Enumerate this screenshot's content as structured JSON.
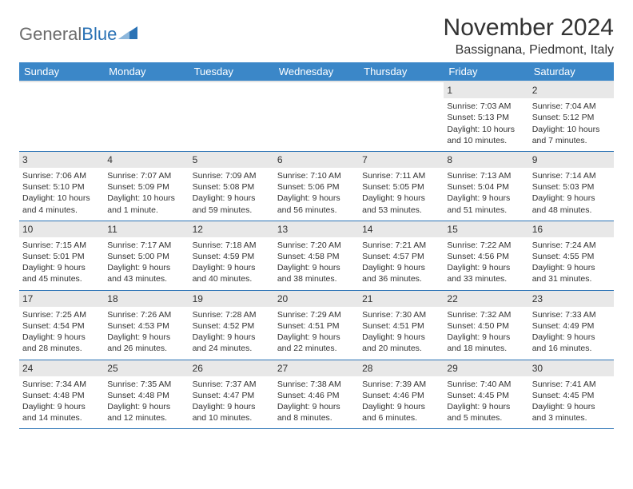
{
  "logo": {
    "text1": "General",
    "text2": "Blue"
  },
  "title": "November 2024",
  "location": "Bassignana, Piedmont, Italy",
  "colors": {
    "header_bg": "#3b87c8",
    "header_text": "#ffffff",
    "daynum_bg": "#e8e8e8",
    "row_border": "#2a72b5",
    "logo_gray": "#6b6b6b",
    "logo_blue": "#2a72b5",
    "page_bg": "#ffffff",
    "body_text": "#333333"
  },
  "weekdays": [
    "Sunday",
    "Monday",
    "Tuesday",
    "Wednesday",
    "Thursday",
    "Friday",
    "Saturday"
  ],
  "weeks": [
    [
      null,
      null,
      null,
      null,
      null,
      {
        "day": "1",
        "sunrise": "Sunrise: 7:03 AM",
        "sunset": "Sunset: 5:13 PM",
        "daylight1": "Daylight: 10 hours",
        "daylight2": "and 10 minutes."
      },
      {
        "day": "2",
        "sunrise": "Sunrise: 7:04 AM",
        "sunset": "Sunset: 5:12 PM",
        "daylight1": "Daylight: 10 hours",
        "daylight2": "and 7 minutes."
      }
    ],
    [
      {
        "day": "3",
        "sunrise": "Sunrise: 7:06 AM",
        "sunset": "Sunset: 5:10 PM",
        "daylight1": "Daylight: 10 hours",
        "daylight2": "and 4 minutes."
      },
      {
        "day": "4",
        "sunrise": "Sunrise: 7:07 AM",
        "sunset": "Sunset: 5:09 PM",
        "daylight1": "Daylight: 10 hours",
        "daylight2": "and 1 minute."
      },
      {
        "day": "5",
        "sunrise": "Sunrise: 7:09 AM",
        "sunset": "Sunset: 5:08 PM",
        "daylight1": "Daylight: 9 hours",
        "daylight2": "and 59 minutes."
      },
      {
        "day": "6",
        "sunrise": "Sunrise: 7:10 AM",
        "sunset": "Sunset: 5:06 PM",
        "daylight1": "Daylight: 9 hours",
        "daylight2": "and 56 minutes."
      },
      {
        "day": "7",
        "sunrise": "Sunrise: 7:11 AM",
        "sunset": "Sunset: 5:05 PM",
        "daylight1": "Daylight: 9 hours",
        "daylight2": "and 53 minutes."
      },
      {
        "day": "8",
        "sunrise": "Sunrise: 7:13 AM",
        "sunset": "Sunset: 5:04 PM",
        "daylight1": "Daylight: 9 hours",
        "daylight2": "and 51 minutes."
      },
      {
        "day": "9",
        "sunrise": "Sunrise: 7:14 AM",
        "sunset": "Sunset: 5:03 PM",
        "daylight1": "Daylight: 9 hours",
        "daylight2": "and 48 minutes."
      }
    ],
    [
      {
        "day": "10",
        "sunrise": "Sunrise: 7:15 AM",
        "sunset": "Sunset: 5:01 PM",
        "daylight1": "Daylight: 9 hours",
        "daylight2": "and 45 minutes."
      },
      {
        "day": "11",
        "sunrise": "Sunrise: 7:17 AM",
        "sunset": "Sunset: 5:00 PM",
        "daylight1": "Daylight: 9 hours",
        "daylight2": "and 43 minutes."
      },
      {
        "day": "12",
        "sunrise": "Sunrise: 7:18 AM",
        "sunset": "Sunset: 4:59 PM",
        "daylight1": "Daylight: 9 hours",
        "daylight2": "and 40 minutes."
      },
      {
        "day": "13",
        "sunrise": "Sunrise: 7:20 AM",
        "sunset": "Sunset: 4:58 PM",
        "daylight1": "Daylight: 9 hours",
        "daylight2": "and 38 minutes."
      },
      {
        "day": "14",
        "sunrise": "Sunrise: 7:21 AM",
        "sunset": "Sunset: 4:57 PM",
        "daylight1": "Daylight: 9 hours",
        "daylight2": "and 36 minutes."
      },
      {
        "day": "15",
        "sunrise": "Sunrise: 7:22 AM",
        "sunset": "Sunset: 4:56 PM",
        "daylight1": "Daylight: 9 hours",
        "daylight2": "and 33 minutes."
      },
      {
        "day": "16",
        "sunrise": "Sunrise: 7:24 AM",
        "sunset": "Sunset: 4:55 PM",
        "daylight1": "Daylight: 9 hours",
        "daylight2": "and 31 minutes."
      }
    ],
    [
      {
        "day": "17",
        "sunrise": "Sunrise: 7:25 AM",
        "sunset": "Sunset: 4:54 PM",
        "daylight1": "Daylight: 9 hours",
        "daylight2": "and 28 minutes."
      },
      {
        "day": "18",
        "sunrise": "Sunrise: 7:26 AM",
        "sunset": "Sunset: 4:53 PM",
        "daylight1": "Daylight: 9 hours",
        "daylight2": "and 26 minutes."
      },
      {
        "day": "19",
        "sunrise": "Sunrise: 7:28 AM",
        "sunset": "Sunset: 4:52 PM",
        "daylight1": "Daylight: 9 hours",
        "daylight2": "and 24 minutes."
      },
      {
        "day": "20",
        "sunrise": "Sunrise: 7:29 AM",
        "sunset": "Sunset: 4:51 PM",
        "daylight1": "Daylight: 9 hours",
        "daylight2": "and 22 minutes."
      },
      {
        "day": "21",
        "sunrise": "Sunrise: 7:30 AM",
        "sunset": "Sunset: 4:51 PM",
        "daylight1": "Daylight: 9 hours",
        "daylight2": "and 20 minutes."
      },
      {
        "day": "22",
        "sunrise": "Sunrise: 7:32 AM",
        "sunset": "Sunset: 4:50 PM",
        "daylight1": "Daylight: 9 hours",
        "daylight2": "and 18 minutes."
      },
      {
        "day": "23",
        "sunrise": "Sunrise: 7:33 AM",
        "sunset": "Sunset: 4:49 PM",
        "daylight1": "Daylight: 9 hours",
        "daylight2": "and 16 minutes."
      }
    ],
    [
      {
        "day": "24",
        "sunrise": "Sunrise: 7:34 AM",
        "sunset": "Sunset: 4:48 PM",
        "daylight1": "Daylight: 9 hours",
        "daylight2": "and 14 minutes."
      },
      {
        "day": "25",
        "sunrise": "Sunrise: 7:35 AM",
        "sunset": "Sunset: 4:48 PM",
        "daylight1": "Daylight: 9 hours",
        "daylight2": "and 12 minutes."
      },
      {
        "day": "26",
        "sunrise": "Sunrise: 7:37 AM",
        "sunset": "Sunset: 4:47 PM",
        "daylight1": "Daylight: 9 hours",
        "daylight2": "and 10 minutes."
      },
      {
        "day": "27",
        "sunrise": "Sunrise: 7:38 AM",
        "sunset": "Sunset: 4:46 PM",
        "daylight1": "Daylight: 9 hours",
        "daylight2": "and 8 minutes."
      },
      {
        "day": "28",
        "sunrise": "Sunrise: 7:39 AM",
        "sunset": "Sunset: 4:46 PM",
        "daylight1": "Daylight: 9 hours",
        "daylight2": "and 6 minutes."
      },
      {
        "day": "29",
        "sunrise": "Sunrise: 7:40 AM",
        "sunset": "Sunset: 4:45 PM",
        "daylight1": "Daylight: 9 hours",
        "daylight2": "and 5 minutes."
      },
      {
        "day": "30",
        "sunrise": "Sunrise: 7:41 AM",
        "sunset": "Sunset: 4:45 PM",
        "daylight1": "Daylight: 9 hours",
        "daylight2": "and 3 minutes."
      }
    ]
  ]
}
